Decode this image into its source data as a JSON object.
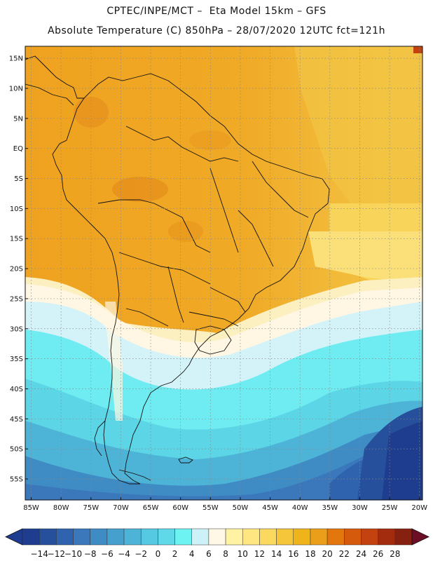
{
  "title": {
    "line1": "CPTEC/INPE/MCT –  Eta Model 15km – GFS",
    "line2": "Absolute Temperature (C) 850hPa – 28/07/2020 12UTC fct=121h"
  },
  "map": {
    "lat_labels": [
      "15N",
      "10N",
      "5N",
      "EQ",
      "5S",
      "10S",
      "15S",
      "20S",
      "25S",
      "30S",
      "35S",
      "40S",
      "45S",
      "50S",
      "55S"
    ],
    "lat_values": [
      15,
      10,
      5,
      0,
      -5,
      -10,
      -15,
      -20,
      -25,
      -30,
      -35,
      -40,
      -45,
      -50,
      -55
    ],
    "lon_labels": [
      "85W",
      "80W",
      "75W",
      "70W",
      "65W",
      "60W",
      "55W",
      "50W",
      "45W",
      "40W",
      "35W",
      "30W",
      "25W",
      "20W"
    ],
    "lon_values": [
      -85,
      -80,
      -75,
      -70,
      -65,
      -60,
      -55,
      -50,
      -45,
      -40,
      -35,
      -30,
      -25,
      -20
    ],
    "lon_range": [
      -86,
      -19.5
    ],
    "lat_range": [
      -58.5,
      17
    ],
    "grid": "dotted"
  },
  "colorbar": {
    "labels": [
      "-14",
      "-12",
      "-10",
      "-8",
      "-6",
      "-4",
      "-2",
      "0",
      "2",
      "4",
      "6",
      "8",
      "10",
      "12",
      "14",
      "16",
      "18",
      "20",
      "22",
      "24",
      "26",
      "28"
    ],
    "colors": [
      "#1e3d8f",
      "#27509c",
      "#2f63ad",
      "#3a77bb",
      "#3f8bc4",
      "#45a0cd",
      "#4db4d8",
      "#55c8e2",
      "#5fd8ea",
      "#6ef3f3",
      "#ccf2f8",
      "#fff8e6",
      "#fff3a3",
      "#ffe680",
      "#fbd95e",
      "#f5c53a",
      "#efb41a",
      "#eb9e1a",
      "#e4760e",
      "#d55a0c",
      "#c34210",
      "#a42c0e",
      "#86200f"
    ],
    "under_color": "#1e3d8f",
    "over_color": "#6e0e26"
  }
}
